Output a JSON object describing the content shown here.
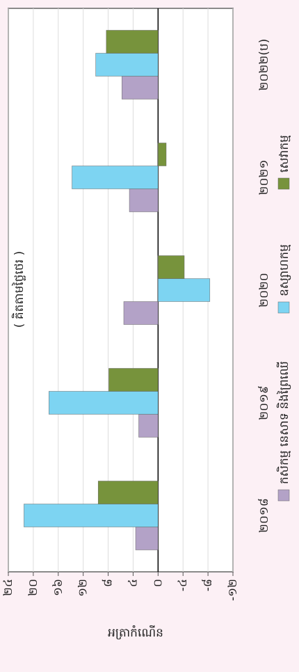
{
  "chart_data": {
    "type": "bar",
    "subtitle": "( គិតតាមថ្លៃថេរ )",
    "y_label": "អត្រាកំណើន",
    "categories": [
      "២០១៨",
      "២០១៩",
      "២០២០",
      "២០២១",
      "២០២២(ប)"
    ],
    "series": [
      {
        "name": "កសិកម្ម នេសាទ និងព្រៃឈើ",
        "color": "#b3a2c7",
        "values": [
          3.6,
          3.1,
          5.5,
          4.6,
          5.8
        ]
      },
      {
        "name": "ឧស្សាហកម្ម",
        "color": "#7dd4f2",
        "values": [
          21.5,
          17.5,
          -8.3,
          13.8,
          10.0
        ]
      },
      {
        "name": "សេវាកម្ម",
        "color": "#77933c",
        "values": [
          9.6,
          7.9,
          -4.2,
          -1.3,
          8.3
        ]
      }
    ],
    "ylim": [
      -12,
      24
    ],
    "yticks": [
      {
        "value": -12,
        "label": "-១២"
      },
      {
        "value": -8,
        "label": "-៨"
      },
      {
        "value": -4,
        "label": "-៤"
      },
      {
        "value": 0,
        "label": "០"
      },
      {
        "value": 4,
        "label": "៤"
      },
      {
        "value": 8,
        "label": "៨"
      },
      {
        "value": 12,
        "label": "១២"
      },
      {
        "value": 16,
        "label": "១៦"
      },
      {
        "value": 20,
        "label": "២០"
      },
      {
        "value": 24,
        "label": "២៤"
      }
    ],
    "grid": true
  }
}
